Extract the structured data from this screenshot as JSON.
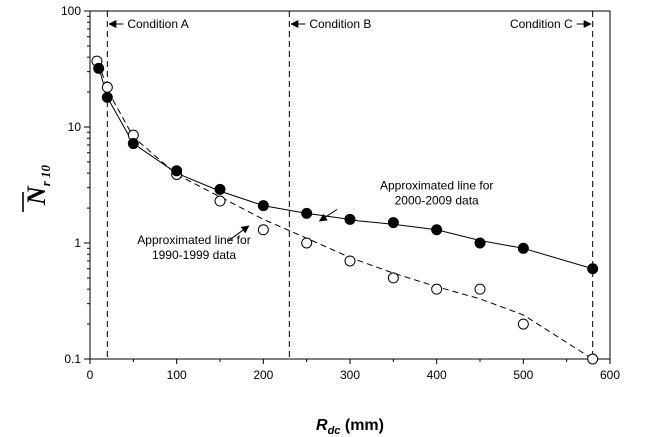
{
  "chart_data": {
    "type": "scatter",
    "xlabel": {
      "main": "R",
      "sub": "dc",
      "unit": " (mm)"
    },
    "ylabel": {
      "main": "N",
      "sub": "r 10"
    },
    "xlim": [
      0,
      600
    ],
    "ylim": [
      0.1,
      100
    ],
    "y_scale": "log",
    "x_ticks": [
      0,
      100,
      200,
      300,
      400,
      500,
      600
    ],
    "y_ticks": [
      0.1,
      1,
      10,
      100
    ],
    "y_tick_labels": [
      "0.1",
      "1",
      "10",
      "100"
    ],
    "series": [
      {
        "name": "2000-2009 data",
        "marker": "filled-circle",
        "line_style": "solid",
        "line_x": [
          10,
          20,
          50,
          100,
          150,
          200,
          250,
          300,
          310,
          350,
          400,
          450,
          500,
          580
        ],
        "line_y": [
          33,
          18,
          7.2,
          4.0,
          2.8,
          2.1,
          1.8,
          1.6,
          1.55,
          1.45,
          1.3,
          1.05,
          0.9,
          0.6
        ],
        "x": [
          10,
          20,
          50,
          100,
          150,
          200,
          250,
          300,
          350,
          400,
          450,
          500,
          580
        ],
        "y": [
          32,
          18,
          7.2,
          4.2,
          2.9,
          2.1,
          1.8,
          1.6,
          1.5,
          1.3,
          1.0,
          0.9,
          0.6
        ]
      },
      {
        "name": "1990-1999 data",
        "marker": "open-circle",
        "line_style": "dashed",
        "line_x": [
          10,
          20,
          50,
          100,
          150,
          200,
          250,
          300,
          350,
          400,
          450,
          500,
          580
        ],
        "line_y": [
          36,
          21,
          8.2,
          3.9,
          2.5,
          1.6,
          1.1,
          0.75,
          0.55,
          0.42,
          0.33,
          0.24,
          0.1
        ],
        "x": [
          8,
          20,
          50,
          100,
          150,
          200,
          250,
          300,
          350,
          400,
          450,
          500,
          580
        ],
        "y": [
          37,
          22,
          8.5,
          3.9,
          2.3,
          1.3,
          1.0,
          0.7,
          0.5,
          0.4,
          0.4,
          0.2,
          0.1
        ]
      }
    ],
    "vertical_lines": [
      {
        "x": 20,
        "label": "Condition A",
        "arrow": "left"
      },
      {
        "x": 230,
        "label": "Condition B",
        "arrow": "left"
      },
      {
        "x": 580,
        "label": "Condition C",
        "arrow": "right"
      }
    ],
    "annotations": [
      {
        "lines": [
          "Approximated line for",
          "2000-2009 data"
        ],
        "text_x": 400,
        "text_y": 2.9,
        "anchor": "middle",
        "arrow_from": [
          285,
          1.95
        ],
        "arrow_to": [
          265,
          1.55
        ]
      },
      {
        "lines": [
          "Approximated line for",
          "1990-1999 data"
        ],
        "text_x": 120,
        "text_y": 0.98,
        "anchor": "middle",
        "arrow_from": [
          160,
          1.05
        ],
        "arrow_to": [
          183,
          1.4
        ]
      }
    ],
    "colors": {
      "axis": "#000000",
      "series": "#000000",
      "background": "#ffffff"
    }
  }
}
